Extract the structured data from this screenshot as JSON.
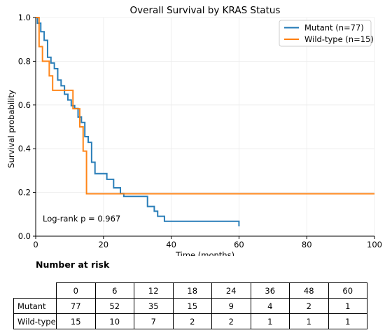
{
  "chart_data": {
    "type": "line",
    "title": "Overall Survival by KRAS Status",
    "xlabel": "Time (months)",
    "ylabel": "Survival probability",
    "xlim": [
      0,
      100
    ],
    "ylim": [
      0,
      1.0
    ],
    "xticks": [
      0,
      20,
      40,
      60,
      80,
      100
    ],
    "yticks": [
      0.0,
      0.2,
      0.4,
      0.6,
      0.8,
      1.0
    ],
    "grid": true,
    "legend_position": "top-right",
    "annotation": "Log-rank p = 0.967",
    "series": [
      {
        "name": "Mutant (n=77)",
        "color": "#1f77b4",
        "step": true,
        "x": [
          0,
          0.5,
          1.5,
          2.5,
          3.5,
          4.5,
          5.5,
          6.5,
          7.5,
          8.5,
          9.5,
          10.5,
          11.5,
          12.5,
          13.5,
          14.5,
          15.5,
          16.5,
          17.5,
          21,
          23,
          25,
          26,
          33,
          35,
          36,
          38,
          60
        ],
        "y": [
          1.0,
          0.974,
          0.935,
          0.896,
          0.818,
          0.792,
          0.766,
          0.714,
          0.688,
          0.649,
          0.623,
          0.597,
          0.584,
          0.545,
          0.52,
          0.455,
          0.429,
          0.338,
          0.286,
          0.26,
          0.221,
          0.195,
          0.182,
          0.136,
          0.114,
          0.091,
          0.068,
          0.045
        ]
      },
      {
        "name": "Wild-type (n=15)",
        "color": "#ff7f0e",
        "step": true,
        "x": [
          0,
          1,
          2,
          4,
          5,
          11,
          13,
          14,
          15,
          100
        ],
        "y": [
          1.0,
          0.867,
          0.8,
          0.733,
          0.667,
          0.583,
          0.5,
          0.389,
          0.194,
          0.194
        ]
      }
    ]
  },
  "risk_table": {
    "heading": "Number at risk",
    "times": [
      "0",
      "6",
      "12",
      "18",
      "24",
      "36",
      "48",
      "60"
    ],
    "rows": [
      {
        "label": "Mutant",
        "values": [
          "77",
          "52",
          "35",
          "15",
          "9",
          "4",
          "2",
          "1"
        ]
      },
      {
        "label": "Wild-type",
        "values": [
          "15",
          "10",
          "7",
          "2",
          "2",
          "1",
          "1",
          "1"
        ]
      }
    ]
  }
}
